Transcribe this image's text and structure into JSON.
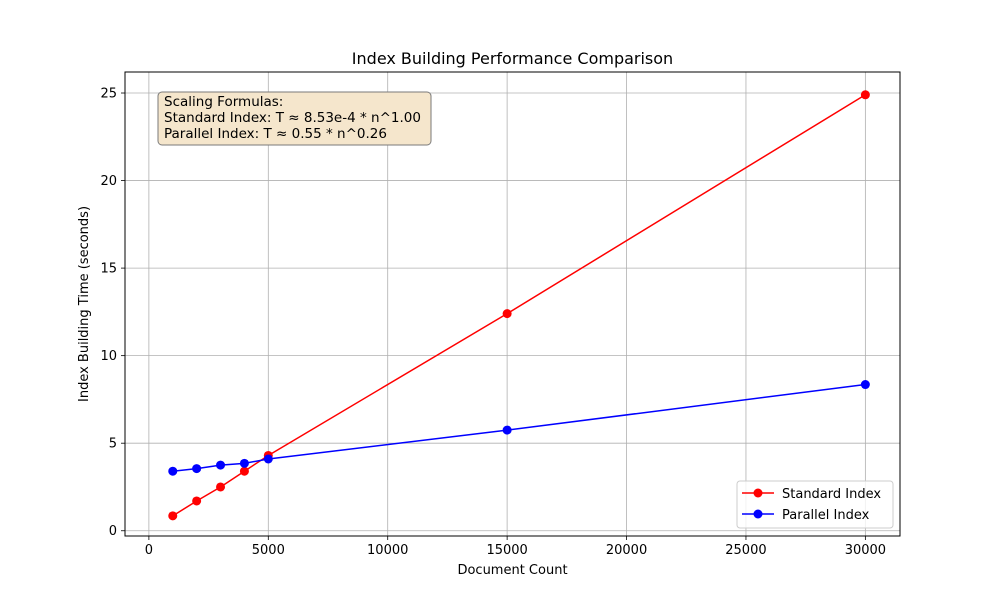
{
  "chart_data": {
    "type": "line",
    "title": "Index Building Performance Comparison",
    "xlabel": "Document Count",
    "ylabel": "Index Building Time (seconds)",
    "xlim": [
      -1000,
      31450
    ],
    "ylim": [
      -0.3,
      26.2
    ],
    "xticks": [
      0,
      5000,
      10000,
      15000,
      20000,
      25000,
      30000
    ],
    "yticks": [
      0,
      5,
      10,
      15,
      20,
      25
    ],
    "grid": true,
    "legend_position": "lower right",
    "series": [
      {
        "name": "Standard Index",
        "color": "#ff0000",
        "marker": "circle",
        "x": [
          1000,
          2000,
          3000,
          4000,
          5000,
          15000,
          30000
        ],
        "y": [
          0.85,
          1.7,
          2.5,
          3.4,
          4.3,
          12.4,
          24.9
        ]
      },
      {
        "name": "Parallel Index",
        "color": "#0000ff",
        "marker": "circle",
        "x": [
          1000,
          2000,
          3000,
          4000,
          5000,
          15000,
          30000
        ],
        "y": [
          3.4,
          3.55,
          3.75,
          3.85,
          4.1,
          5.75,
          8.35
        ]
      }
    ],
    "annotation": {
      "lines": [
        "Scaling Formulas:",
        "Standard Index: T ≈ 8.53e-4 * n^1.00",
        "Parallel Index: T ≈ 0.55 * n^0.26"
      ],
      "background": "#f5e6cc",
      "border": "#7a7a7a"
    }
  }
}
